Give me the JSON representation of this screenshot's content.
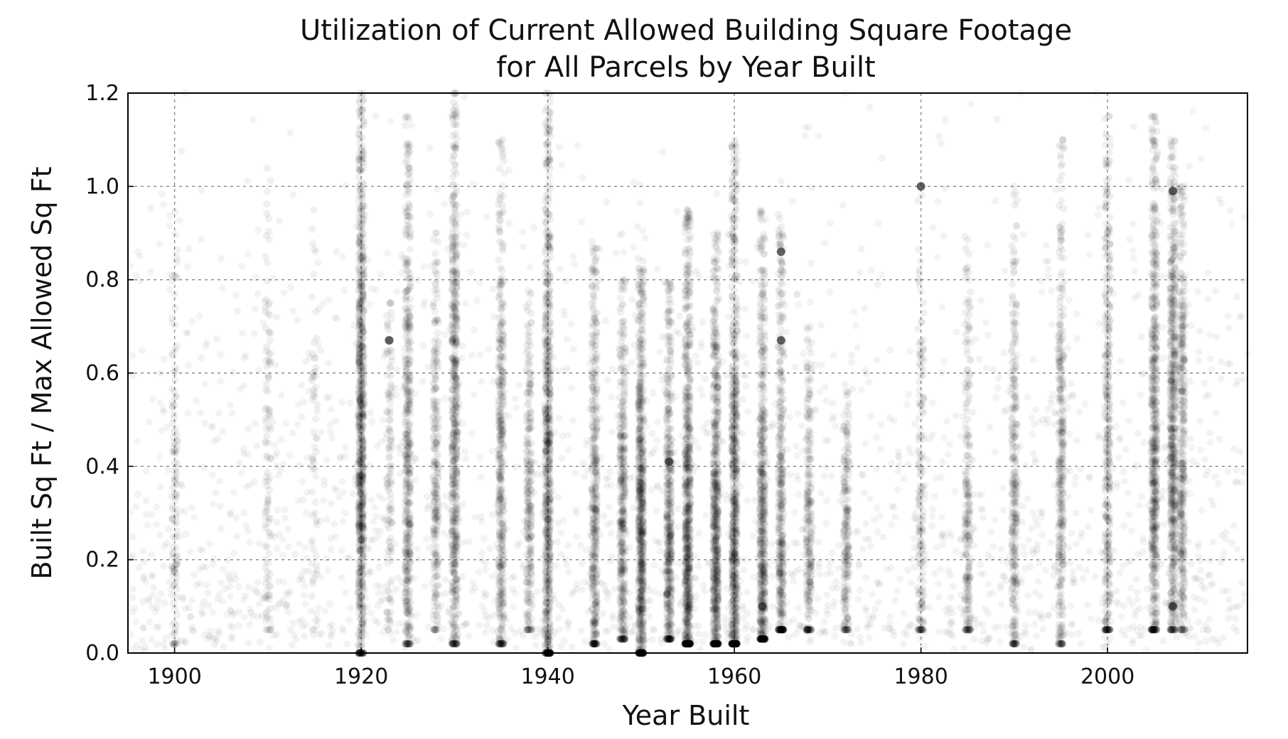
{
  "chart_data": {
    "type": "scatter",
    "title": "Utilization of Current Allowed Building Square Footage",
    "subtitle": "for All Parcels by Year Built",
    "xlabel": "Year Built",
    "ylabel": "Built Sq Ft / Max Allowed Sq Ft",
    "xlim": [
      1895,
      2015
    ],
    "ylim": [
      0.0,
      1.2
    ],
    "x_ticks": [
      1900,
      1920,
      1940,
      1960,
      1980,
      2000
    ],
    "x_tick_labels": [
      "1900",
      "1920",
      "1940",
      "1960",
      "1980",
      "2000"
    ],
    "y_ticks": [
      0.0,
      0.2,
      0.4,
      0.6,
      0.8,
      1.0,
      1.2
    ],
    "y_tick_labels": [
      "0.0",
      "0.2",
      "0.4",
      "0.6",
      "0.8",
      "1.0",
      "1.2"
    ],
    "grid": true,
    "marker_color": "#000000",
    "marker_alpha": 0.06,
    "series_density": [
      {
        "year": 1900,
        "ymin": 0.02,
        "ymax": 0.95,
        "center": 0.32,
        "count": 120
      },
      {
        "year": 1910,
        "ymin": 0.05,
        "ymax": 1.05,
        "center": 0.45,
        "count": 110
      },
      {
        "year": 1915,
        "ymin": 0.05,
        "ymax": 0.95,
        "center": 0.45,
        "count": 60
      },
      {
        "year": 1920,
        "ymin": 0.0,
        "ymax": 1.2,
        "center": 0.45,
        "count": 900
      },
      {
        "year": 1923,
        "ymin": 0.05,
        "ymax": 0.75,
        "center": 0.4,
        "count": 120
      },
      {
        "year": 1925,
        "ymin": 0.02,
        "ymax": 1.15,
        "center": 0.4,
        "count": 500
      },
      {
        "year": 1928,
        "ymin": 0.05,
        "ymax": 0.9,
        "center": 0.35,
        "count": 260
      },
      {
        "year": 1930,
        "ymin": 0.02,
        "ymax": 1.2,
        "center": 0.45,
        "count": 650
      },
      {
        "year": 1935,
        "ymin": 0.02,
        "ymax": 1.1,
        "center": 0.35,
        "count": 450
      },
      {
        "year": 1938,
        "ymin": 0.05,
        "ymax": 0.8,
        "center": 0.3,
        "count": 260
      },
      {
        "year": 1940,
        "ymin": 0.0,
        "ymax": 1.2,
        "center": 0.3,
        "count": 800
      },
      {
        "year": 1945,
        "ymin": 0.02,
        "ymax": 0.9,
        "center": 0.25,
        "count": 450
      },
      {
        "year": 1948,
        "ymin": 0.03,
        "ymax": 0.8,
        "center": 0.25,
        "count": 420
      },
      {
        "year": 1950,
        "ymin": 0.0,
        "ymax": 0.85,
        "center": 0.22,
        "count": 800
      },
      {
        "year": 1953,
        "ymin": 0.03,
        "ymax": 0.8,
        "center": 0.22,
        "count": 500
      },
      {
        "year": 1955,
        "ymin": 0.02,
        "ymax": 0.95,
        "center": 0.2,
        "count": 850
      },
      {
        "year": 1958,
        "ymin": 0.02,
        "ymax": 0.9,
        "center": 0.2,
        "count": 750
      },
      {
        "year": 1960,
        "ymin": 0.02,
        "ymax": 1.1,
        "center": 0.2,
        "count": 850
      },
      {
        "year": 1963,
        "ymin": 0.03,
        "ymax": 0.95,
        "center": 0.2,
        "count": 650
      },
      {
        "year": 1965,
        "ymin": 0.05,
        "ymax": 0.95,
        "center": 0.22,
        "count": 450
      },
      {
        "year": 1968,
        "ymin": 0.05,
        "ymax": 0.7,
        "center": 0.22,
        "count": 260
      },
      {
        "year": 1972,
        "ymin": 0.05,
        "ymax": 0.6,
        "center": 0.22,
        "count": 220
      },
      {
        "year": 1980,
        "ymin": 0.05,
        "ymax": 1.0,
        "center": 0.25,
        "count": 170
      },
      {
        "year": 1985,
        "ymin": 0.05,
        "ymax": 0.9,
        "center": 0.25,
        "count": 240
      },
      {
        "year": 1990,
        "ymin": 0.02,
        "ymax": 1.0,
        "center": 0.3,
        "count": 320
      },
      {
        "year": 1995,
        "ymin": 0.02,
        "ymax": 1.1,
        "center": 0.35,
        "count": 360
      },
      {
        "year": 2000,
        "ymin": 0.05,
        "ymax": 1.15,
        "center": 0.35,
        "count": 380
      },
      {
        "year": 2005,
        "ymin": 0.05,
        "ymax": 1.15,
        "center": 0.42,
        "count": 650
      },
      {
        "year": 2007,
        "ymin": 0.05,
        "ymax": 1.1,
        "center": 0.45,
        "count": 650
      },
      {
        "year": 2008,
        "ymin": 0.05,
        "ymax": 1.0,
        "center": 0.42,
        "count": 400
      }
    ],
    "highlighted_points": [
      {
        "x": 1923,
        "y": 0.67
      },
      {
        "x": 1953,
        "y": 0.41
      },
      {
        "x": 1965,
        "y": 0.67
      },
      {
        "x": 1965,
        "y": 0.86
      },
      {
        "x": 1963,
        "y": 0.1
      },
      {
        "x": 1980,
        "y": 1.0
      },
      {
        "x": 2007,
        "y": 0.99
      },
      {
        "x": 2007,
        "y": 0.1
      }
    ]
  }
}
